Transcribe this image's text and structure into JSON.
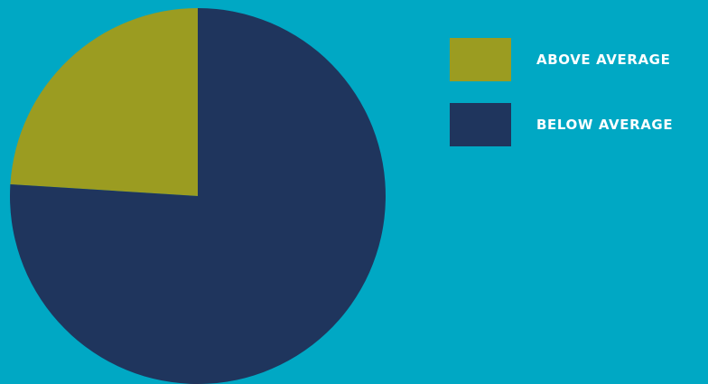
{
  "colors": {
    "background": "#00a8c4",
    "above": "#9b9c21",
    "below": "#1f355d"
  },
  "chart_data": {
    "type": "pie",
    "categories": [
      "ABOVE AVERAGE",
      "BELOW AVERAGE"
    ],
    "values": [
      24,
      76
    ],
    "colors": [
      "#9b9c21",
      "#1f355d"
    ],
    "title": "",
    "legend_position": "right"
  },
  "legend": {
    "items": [
      {
        "label": "ABOVE AVERAGE",
        "color": "#9b9c21"
      },
      {
        "label": "BELOW AVERAGE",
        "color": "#1f355d"
      }
    ]
  }
}
